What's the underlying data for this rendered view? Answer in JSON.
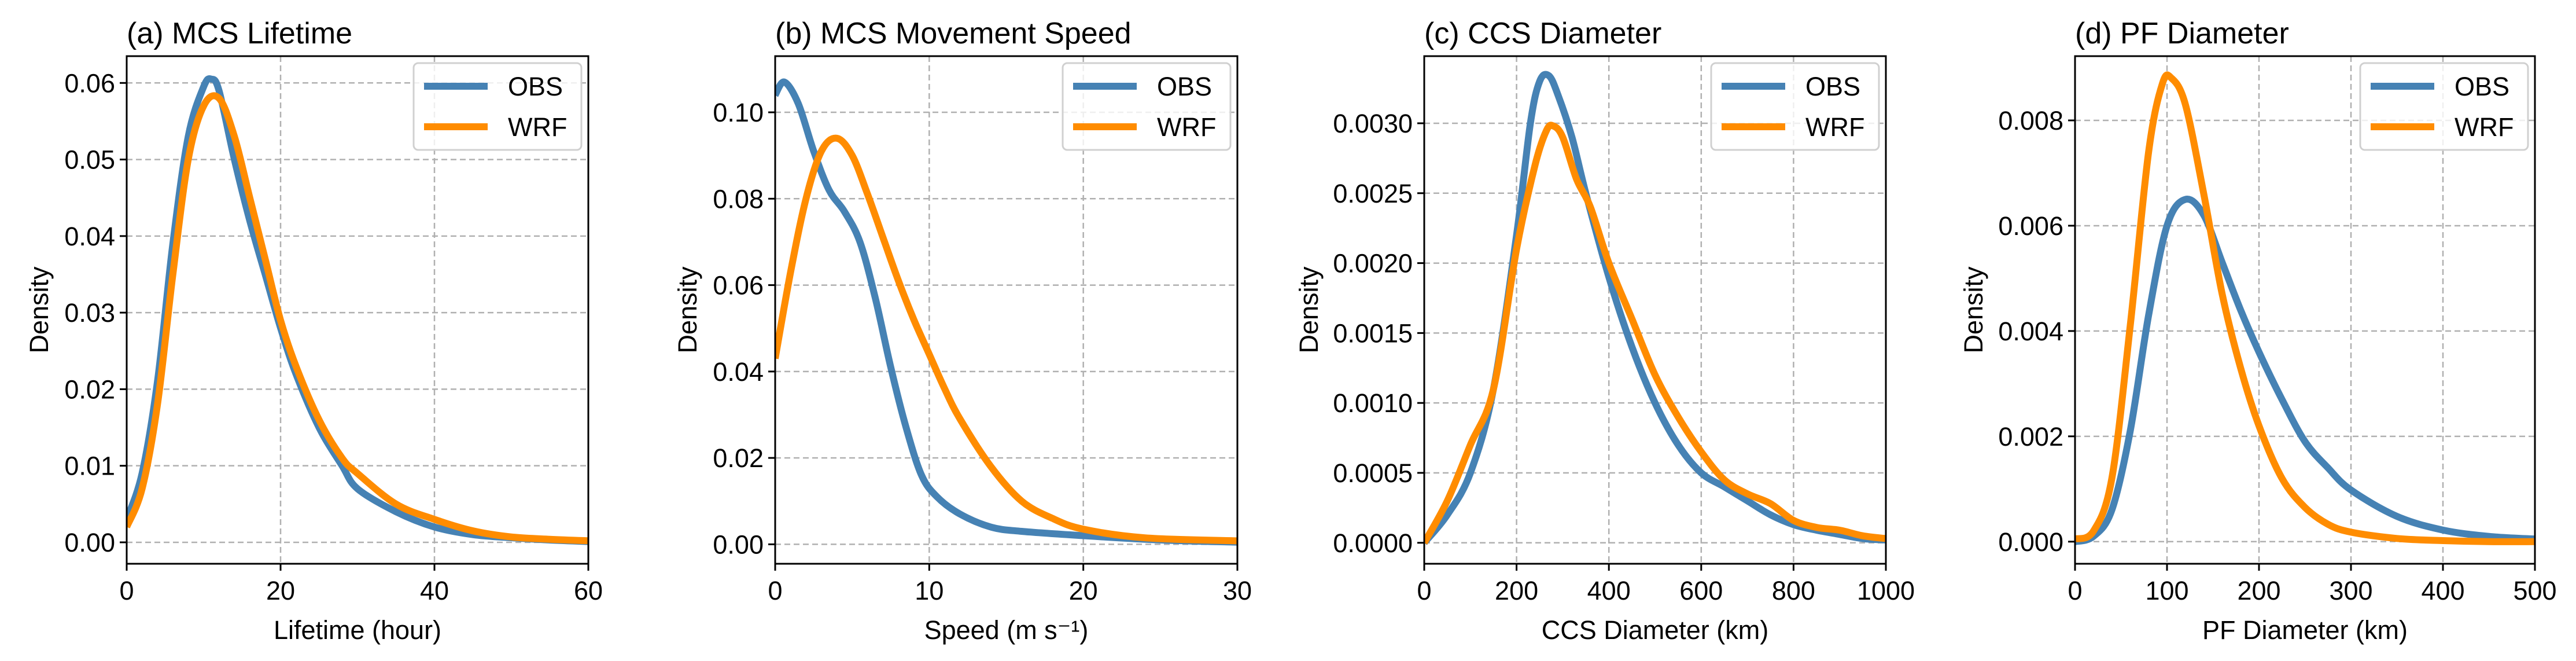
{
  "colors": {
    "OBS": "#4682b4",
    "WRF": "#ff8c00"
  },
  "chart_data": [
    {
      "type": "line",
      "title": "(a) MCS Lifetime",
      "xlabel": "Lifetime (hour)",
      "ylabel": "Density",
      "xlim": [
        0,
        60
      ],
      "ylim": [
        -0.0028,
        0.0635
      ],
      "xticks": [
        0,
        20,
        40,
        60
      ],
      "xtick_labels": [
        "0",
        "20",
        "40",
        "60"
      ],
      "yticks": [
        0,
        0.01,
        0.02,
        0.03,
        0.04,
        0.05,
        0.06
      ],
      "ytick_labels": [
        "0.00",
        "0.01",
        "0.02",
        "0.03",
        "0.04",
        "0.05",
        "0.06"
      ],
      "grid": true,
      "legend": {
        "position": "top-right",
        "entries": [
          "OBS",
          "WRF"
        ]
      },
      "series": [
        {
          "name": "OBS",
          "x": [
            0,
            2,
            4,
            6,
            8,
            10,
            11,
            12,
            14,
            16,
            18,
            20,
            22,
            25,
            28,
            30,
            35,
            40,
            45,
            50,
            55,
            60
          ],
          "y": [
            0.003,
            0.009,
            0.021,
            0.039,
            0.053,
            0.0595,
            0.0605,
            0.059,
            0.05,
            0.042,
            0.035,
            0.028,
            0.022,
            0.015,
            0.01,
            0.007,
            0.004,
            0.002,
            0.001,
            0.0006,
            0.0003,
            0.0001
          ]
        },
        {
          "name": "WRF",
          "x": [
            0,
            2,
            4,
            6,
            8,
            10,
            12,
            14,
            16,
            18,
            20,
            22,
            25,
            28,
            30,
            35,
            40,
            45,
            50,
            55,
            60
          ],
          "y": [
            0.002,
            0.007,
            0.018,
            0.035,
            0.05,
            0.057,
            0.058,
            0.053,
            0.045,
            0.037,
            0.029,
            0.023,
            0.016,
            0.011,
            0.009,
            0.005,
            0.003,
            0.0015,
            0.0007,
            0.0004,
            0.0002
          ]
        }
      ]
    },
    {
      "type": "line",
      "title": "(b) MCS Movement Speed",
      "xlabel": "Speed (m s⁻¹)",
      "ylabel": "Density",
      "xlim": [
        0,
        30
      ],
      "ylim": [
        -0.0045,
        0.113
      ],
      "xticks": [
        0,
        10,
        20,
        30
      ],
      "xtick_labels": [
        "0",
        "10",
        "20",
        "30"
      ],
      "yticks": [
        0,
        0.02,
        0.04,
        0.06,
        0.08,
        0.1
      ],
      "ytick_labels": [
        "0.00",
        "0.02",
        "0.04",
        "0.06",
        "0.08",
        "0.10"
      ],
      "grid": true,
      "legend": {
        "position": "top-right",
        "entries": [
          "OBS",
          "WRF"
        ]
      },
      "series": [
        {
          "name": "OBS",
          "x": [
            0,
            0.6,
            1.5,
            2.5,
            3.5,
            4.5,
            5.5,
            6.5,
            7.5,
            8.5,
            9.5,
            10.5,
            12,
            14,
            16,
            20,
            25,
            30
          ],
          "y": [
            0.104,
            0.107,
            0.102,
            0.091,
            0.082,
            0.077,
            0.07,
            0.057,
            0.041,
            0.027,
            0.016,
            0.011,
            0.007,
            0.004,
            0.003,
            0.002,
            0.001,
            0.0005
          ]
        },
        {
          "name": "WRF",
          "x": [
            0,
            1,
            2,
            3,
            4,
            5,
            6,
            7,
            8,
            9,
            10,
            11,
            12,
            14,
            16,
            18,
            20,
            24,
            30
          ],
          "y": [
            0.043,
            0.063,
            0.08,
            0.091,
            0.094,
            0.09,
            0.081,
            0.071,
            0.061,
            0.052,
            0.044,
            0.036,
            0.029,
            0.018,
            0.01,
            0.006,
            0.0035,
            0.0015,
            0.0008
          ]
        }
      ]
    },
    {
      "type": "line",
      "title": "(c) CCS Diameter",
      "xlabel": "CCS Diameter (km)",
      "ylabel": "Density",
      "xlim": [
        0,
        1000
      ],
      "ylim": [
        -0.00015,
        0.00348
      ],
      "xticks": [
        0,
        200,
        400,
        600,
        800,
        1000
      ],
      "xtick_labels": [
        "0",
        "200",
        "400",
        "600",
        "800",
        "1000"
      ],
      "yticks": [
        0,
        0.0005,
        0.001,
        0.0015,
        0.002,
        0.0025,
        0.003
      ],
      "ytick_labels": [
        "0.0000",
        "0.0005",
        "0.0010",
        "0.0015",
        "0.0020",
        "0.0025",
        "0.0030"
      ],
      "grid": true,
      "legend": {
        "position": "top-right",
        "entries": [
          "OBS",
          "WRF"
        ]
      },
      "series": [
        {
          "name": "OBS",
          "x": [
            0,
            50,
            100,
            150,
            200,
            230,
            250,
            270,
            290,
            320,
            350,
            400,
            450,
            500,
            550,
            600,
            650,
            700,
            750,
            800,
            850,
            900,
            950,
            1000
          ],
          "y": [
            0.0,
            0.0002,
            0.0005,
            0.0011,
            0.0022,
            0.003,
            0.0033,
            0.00334,
            0.0032,
            0.0029,
            0.0025,
            0.0019,
            0.0014,
            0.001,
            0.0007,
            0.0005,
            0.0004,
            0.0003,
            0.0002,
            0.00013,
            9e-05,
            6e-05,
            3e-05,
            2e-05
          ]
        },
        {
          "name": "WRF",
          "x": [
            0,
            50,
            100,
            150,
            200,
            240,
            265,
            280,
            300,
            330,
            360,
            400,
            450,
            500,
            550,
            600,
            650,
            700,
            750,
            800,
            850,
            900,
            950,
            1000
          ],
          "y": [
            0.0,
            0.0003,
            0.0007,
            0.0011,
            0.0021,
            0.0027,
            0.00295,
            0.00298,
            0.0029,
            0.0026,
            0.0024,
            0.002,
            0.0016,
            0.0012,
            0.0009,
            0.00065,
            0.00045,
            0.00035,
            0.00028,
            0.00016,
            0.00011,
            9e-05,
            5e-05,
            3e-05
          ]
        }
      ]
    },
    {
      "type": "line",
      "title": "(d) PF Diameter",
      "xlabel": "PF Diameter (km)",
      "ylabel": "Density",
      "xlim": [
        0,
        500
      ],
      "ylim": [
        -0.00042,
        0.00922
      ],
      "xticks": [
        0,
        100,
        200,
        300,
        400,
        500
      ],
      "xtick_labels": [
        "0",
        "100",
        "200",
        "300",
        "400",
        "500"
      ],
      "yticks": [
        0,
        0.002,
        0.004,
        0.006,
        0.008
      ],
      "ytick_labels": [
        "0.000",
        "0.002",
        "0.004",
        "0.006",
        "0.008"
      ],
      "grid": true,
      "legend": {
        "position": "top-right",
        "entries": [
          "OBS",
          "WRF"
        ]
      },
      "series": [
        {
          "name": "OBS",
          "x": [
            0,
            20,
            40,
            60,
            80,
            100,
            120,
            140,
            160,
            180,
            200,
            225,
            250,
            275,
            300,
            350,
            400,
            450,
            500
          ],
          "y": [
            0.0,
            0.0001,
            0.0006,
            0.0021,
            0.0043,
            0.006,
            0.0065,
            0.0062,
            0.0053,
            0.0044,
            0.0036,
            0.0027,
            0.0019,
            0.0014,
            0.00098,
            0.00048,
            0.00022,
            0.0001,
            5e-05
          ]
        },
        {
          "name": "WRF",
          "x": [
            0,
            20,
            40,
            60,
            80,
            95,
            105,
            120,
            140,
            160,
            180,
            200,
            225,
            250,
            275,
            300,
            350,
            400,
            450,
            500
          ],
          "y": [
            5e-05,
            0.0002,
            0.0012,
            0.0041,
            0.0074,
            0.0087,
            0.0088,
            0.0083,
            0.0066,
            0.0047,
            0.0033,
            0.0022,
            0.0012,
            0.00065,
            0.00033,
            0.00018,
            6e-05,
            2e-05,
            0.0,
            0.0
          ]
        }
      ]
    }
  ]
}
